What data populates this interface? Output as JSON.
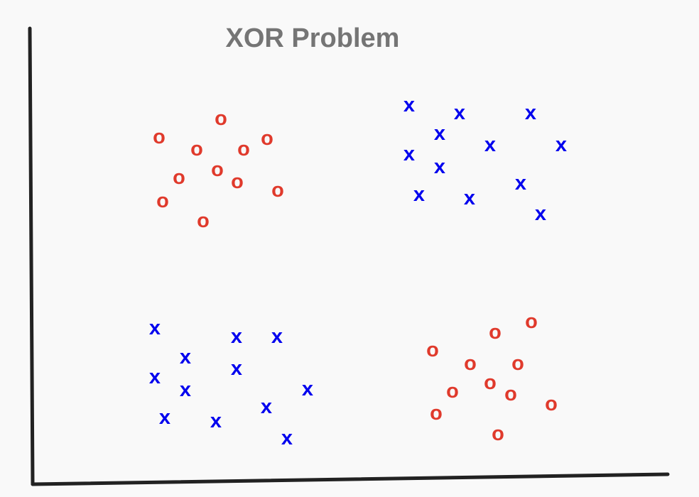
{
  "title": "XOR Problem",
  "colors": {
    "background": "#f9f9f9",
    "axis": "#222222",
    "title": "#757575",
    "class_x": "#0000ee",
    "class_o": "#e03a2c"
  },
  "classes": {
    "x": {
      "symbol": "x",
      "color": "#0000ee"
    },
    "o": {
      "symbol": "o",
      "color": "#e03a2c"
    }
  },
  "clusters": [
    {
      "region": "top-left",
      "class": "o",
      "points": [
        [
          311,
          166
        ],
        [
          224,
          192
        ],
        [
          277,
          209
        ],
        [
          343,
          209
        ],
        [
          376,
          194
        ],
        [
          306,
          238
        ],
        [
          252,
          249
        ],
        [
          334,
          255
        ],
        [
          391,
          267
        ],
        [
          229,
          282
        ],
        [
          286,
          310
        ]
      ]
    },
    {
      "region": "top-right",
      "class": "x",
      "points": [
        [
          576,
          147
        ],
        [
          647,
          158
        ],
        [
          747,
          158
        ],
        [
          619,
          187
        ],
        [
          690,
          203
        ],
        [
          790,
          203
        ],
        [
          576,
          216
        ],
        [
          619,
          234
        ],
        [
          733,
          257
        ],
        [
          590,
          273
        ],
        [
          661,
          278
        ],
        [
          761,
          300
        ]
      ]
    },
    {
      "region": "bottom-left",
      "class": "x",
      "points": [
        [
          218,
          461
        ],
        [
          333,
          473
        ],
        [
          390,
          473
        ],
        [
          261,
          502
        ],
        [
          333,
          518
        ],
        [
          218,
          530
        ],
        [
          261,
          548
        ],
        [
          433,
          547
        ],
        [
          375,
          572
        ],
        [
          232,
          587
        ],
        [
          304,
          592
        ],
        [
          404,
          616
        ]
      ]
    },
    {
      "region": "bottom-right",
      "class": "o",
      "points": [
        [
          748,
          452
        ],
        [
          697,
          467
        ],
        [
          609,
          492
        ],
        [
          662,
          511
        ],
        [
          729,
          511
        ],
        [
          690,
          538
        ],
        [
          637,
          550
        ],
        [
          719,
          554
        ],
        [
          776,
          568
        ],
        [
          614,
          581
        ],
        [
          701,
          610
        ]
      ]
    }
  ]
}
